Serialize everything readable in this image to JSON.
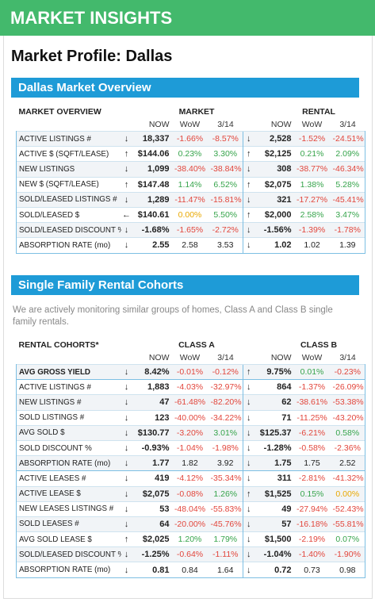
{
  "header": {
    "title": "MARKET INSIGHTS"
  },
  "profile_title": "Market Profile: Dallas",
  "sections": [
    {
      "title": "Dallas Market Overview",
      "table": {
        "corner": "MARKET OVERVIEW",
        "group_a": "MARKET",
        "group_b": "RENTAL",
        "subheaders": [
          "NOW",
          "WoW",
          "3/14",
          "NOW",
          "WoW",
          "3/14"
        ],
        "rows": [
          [
            "ACTIVE LISTINGS #",
            "↓",
            "18,337",
            "-1.66%",
            "-8.57%",
            "↓",
            "2,528",
            "-1.52%",
            "-24.51%"
          ],
          [
            "ACTIVE $ (SQFT/LEASE)",
            "↑",
            "$144.06",
            "0.23%",
            "3.30%",
            "↑",
            "$2,125",
            "0.21%",
            "2.09%"
          ],
          [
            "NEW LISTINGS",
            "↓",
            "1,099",
            "-38.40%",
            "-38.84%",
            "↓",
            "308",
            "-38.77%",
            "-46.34%"
          ],
          [
            "NEW $ (SQFT/LEASE)",
            "↑",
            "$147.48",
            "1.14%",
            "6.52%",
            "↑",
            "$2,075",
            "1.38%",
            "5.28%"
          ],
          [
            "SOLD/LEASED LISTINGS #",
            "↓",
            "1,289",
            "-11.47%",
            "-15.81%",
            "↓",
            "321",
            "-17.27%",
            "-45.41%"
          ],
          [
            "SOLD/LEASED $",
            "←",
            "$140.61",
            "0.00%",
            "5.50%",
            "↑",
            "$2,000",
            "2.58%",
            "3.47%"
          ],
          [
            "SOLD/LEASED DISCOUNT %",
            "↓",
            "-1.68%",
            "-1.65%",
            "-2.72%",
            "↓",
            "-1.56%",
            "-1.39%",
            "-1.78%"
          ],
          [
            "ABSORPTION RATE (mo)",
            "↓",
            "2.55",
            "2.58",
            "3.53",
            "↓",
            "1.02",
            "1.02",
            "1.39"
          ]
        ]
      }
    },
    {
      "title": "Single Family Rental Cohorts",
      "description": "We are actively monitoring similar groups of homes, Class A and Class B single family rentals.",
      "table": {
        "corner": "RENTAL COHORTS*",
        "group_a": "CLASS A",
        "group_b": "CLASS B",
        "subheaders": [
          "NOW",
          "WoW",
          "3/14",
          "NOW",
          "WoW",
          "3/14"
        ],
        "rows": [
          [
            "AVG GROSS YIELD",
            "↓",
            "8.42%",
            "-0.01%",
            "-0.12%",
            "↑",
            "9.75%",
            "0.01%",
            "-0.23%"
          ],
          [
            "ACTIVE LISTINGS #",
            "↓",
            "1,883",
            "-4.03%",
            "-32.97%",
            "↓",
            "864",
            "-1.37%",
            "-26.09%"
          ],
          [
            "NEW LISTINGS #",
            "↓",
            "47",
            "-61.48%",
            "-82.20%",
            "↓",
            "62",
            "-38.61%",
            "-53.38%"
          ],
          [
            "SOLD LISTINGS #",
            "↓",
            "123",
            "-40.00%",
            "-34.22%",
            "↓",
            "71",
            "-11.25%",
            "-43.20%"
          ],
          [
            "AVG SOLD $",
            "↓",
            "$130.77",
            "-3.20%",
            "3.01%",
            "↓",
            "$125.37",
            "-6.21%",
            "0.58%"
          ],
          [
            "SOLD DISCOUNT %",
            "↓",
            "-0.93%",
            "-1.04%",
            "-1.98%",
            "↓",
            "-1.28%",
            "-0.58%",
            "-2.36%"
          ],
          [
            "ABSORPTION RATE (mo)",
            "↓",
            "1.77",
            "1.82",
            "3.92",
            "↓",
            "1.75",
            "1.75",
            "2.52"
          ],
          [
            "ACTIVE LEASES #",
            "↓",
            "419",
            "-4.12%",
            "-35.34%",
            "↓",
            "311",
            "-2.81%",
            "-41.32%"
          ],
          [
            "ACTIVE LEASE $",
            "↓",
            "$2,075",
            "-0.08%",
            "1.26%",
            "↑",
            "$1,525",
            "0.15%",
            "0.00%"
          ],
          [
            "NEW LEASES LISTINGS #",
            "↓",
            "53",
            "-48.04%",
            "-55.83%",
            "↓",
            "49",
            "-27.94%",
            "-52.43%"
          ],
          [
            "SOLD LEASES #",
            "↓",
            "64",
            "-20.00%",
            "-45.76%",
            "↓",
            "57",
            "-16.18%",
            "-55.81%"
          ],
          [
            "AVG SOLD LEASE $",
            "↑",
            "$2,025",
            "1.20%",
            "1.79%",
            "↓",
            "$1,500",
            "-2.19%",
            "0.07%"
          ],
          [
            "SOLD/LEASED DISCOUNT %",
            "↓",
            "-1.25%",
            "-0.64%",
            "-1.11%",
            "↓",
            "-1.04%",
            "-1.40%",
            "-1.90%"
          ],
          [
            "ABSORPTION RATE (mo)",
            "↓",
            "0.81",
            "0.84",
            "1.64",
            "↓",
            "0.72",
            "0.73",
            "0.98"
          ]
        ]
      }
    }
  ]
}
